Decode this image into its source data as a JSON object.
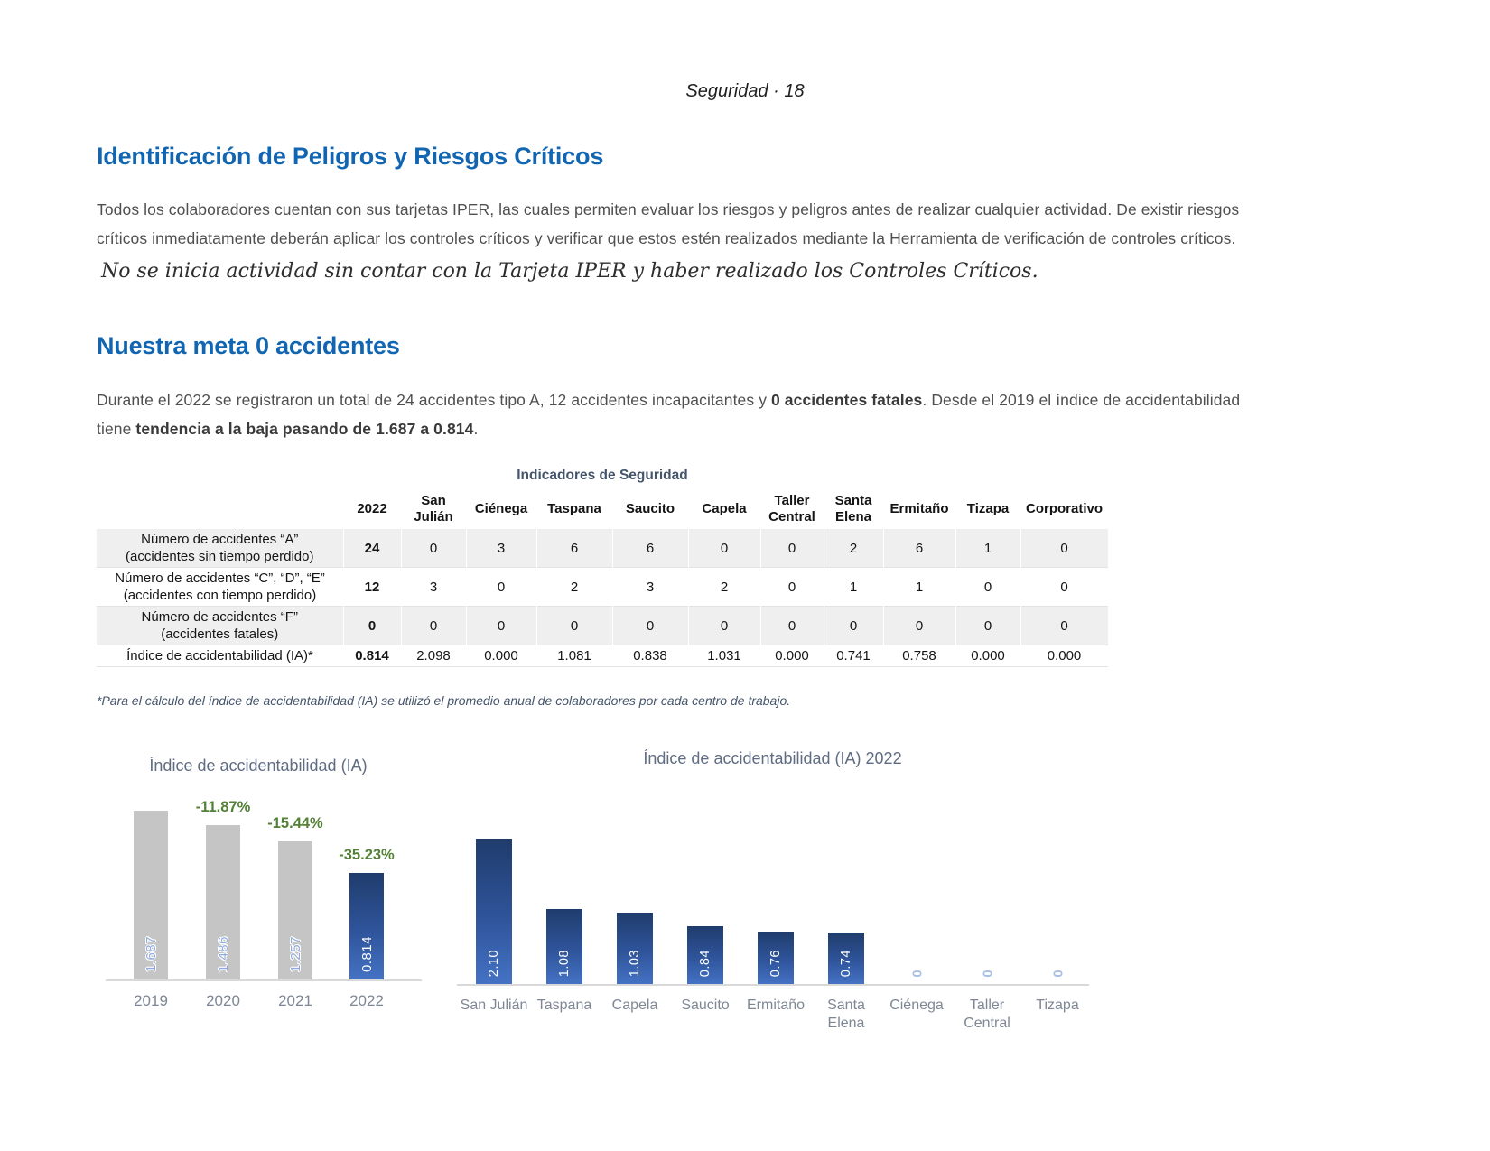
{
  "header": {
    "text": "Seguridad · 18"
  },
  "section_identificacion": {
    "title": "Identificación de Peligros y Riesgos Críticos",
    "body_line1": "Todos los colaboradores cuentan con sus tarjetas IPER, las cuales permiten evaluar los riesgos y peligros antes de realizar cualquier actividad.  De existir riesgos",
    "body_line2": "críticos inmediatamente deberán aplicar los controles críticos y verificar que estos estén realizados mediante la Herramienta de verificación de controles críticos.",
    "quote": "No se inicia actividad sin contar con la Tarjeta IPER y haber realizado los Controles Críticos."
  },
  "section_meta": {
    "title": "Nuestra meta 0 accidentes",
    "p_line1_normal1": "Durante el 2022 se registraron un total de 24 accidentes tipo A, 12 accidentes incapacitantes y ",
    "p_line1_bold": "0 accidentes fatales",
    "p_line1_normal2": ". Desde el 2019 el índice de accidentabilidad",
    "p_line2_normal1": "tiene ",
    "p_line2_bold": "tendencia a la baja pasando de 1.687 a 0.814",
    "p_line2_normal2": "."
  },
  "table": {
    "title": "Indicadores de Seguridad",
    "columns": [
      "2022",
      "San Julián",
      "Ciénega",
      "Taspana",
      "Saucito",
      "Capela",
      "Taller Central",
      "Santa Elena",
      "Ermitaño",
      "Tizapa",
      "Corporativo"
    ],
    "rows": [
      {
        "label_1": "Número de accidentes “A”",
        "label_2": "(accidentes sin tiempo perdido)",
        "values": [
          "24",
          "0",
          "3",
          "6",
          "6",
          "0",
          "0",
          "2",
          "6",
          "1",
          "0"
        ]
      },
      {
        "label_1": "Número de accidentes “C”, “D”, “E”",
        "label_2": "(accidentes con tiempo perdido)",
        "values": [
          "12",
          "3",
          "0",
          "2",
          "3",
          "2",
          "0",
          "1",
          "1",
          "0",
          "0"
        ]
      },
      {
        "label_1": "Número de accidentes “F”",
        "label_2": "(accidentes fatales)",
        "values": [
          "0",
          "0",
          "0",
          "0",
          "0",
          "0",
          "0",
          "0",
          "0",
          "0",
          "0"
        ]
      },
      {
        "label_1": "Índice de accidentabilidad (IA)*",
        "label_2": "",
        "values": [
          "0.814",
          "2.098",
          "0.000",
          "1.081",
          "0.838",
          "1.031",
          "0.000",
          "0.741",
          "0.758",
          "0.000",
          "0.000"
        ]
      }
    ],
    "footnote": "*Para el cálculo del índice de accidentabilidad (IA) se utilizó el promedio anual de colaboradores por cada centro de trabajo."
  },
  "chart_data": [
    {
      "type": "bar",
      "title": "Índice de accidentabilidad (IA)",
      "categories": [
        "2019",
        "2020",
        "2021",
        "2022"
      ],
      "values": [
        1.687,
        1.486,
        1.257,
        0.814
      ],
      "bar_labels": [
        "1.687",
        "1.486",
        "1.257",
        "0.814"
      ],
      "annotations": [
        "",
        "-11.87%",
        "-15.44%",
        "-35.23%"
      ],
      "highlight_index": 3,
      "xlabel": "",
      "ylabel": "",
      "grid": false,
      "legend": "none",
      "bar_color_default": "#C5C5C5",
      "bar_color_highlight": "#2E5BA5",
      "annotation_color": "#538135",
      "value_label_color": "#8FAADC"
    },
    {
      "type": "bar",
      "title": "Índice de accidentabilidad (IA) 2022",
      "categories": [
        "San Julián",
        "Taspana",
        "Capela",
        "Saucito",
        "Ermitaño",
        "Santa Elena",
        "Ciénega",
        "Taller Central",
        "Tizapa"
      ],
      "values": [
        2.1,
        1.08,
        1.03,
        0.84,
        0.76,
        0.74,
        0,
        0,
        0
      ],
      "bar_labels": [
        "2.10",
        "1.08",
        "1.03",
        "0.84",
        "0.76",
        "0.74",
        "0",
        "0",
        "0"
      ],
      "ylim": [
        0,
        2.1
      ],
      "xlabel": "",
      "ylabel": "",
      "grid": false,
      "legend": "none",
      "bar_color_top": "#1F3C6C",
      "bar_color_bottom": "#4472C4",
      "value_label_color": "#FFFFFF",
      "zero_marker_color": "#A9C0E6"
    }
  ],
  "colors": {
    "heading_blue": "#1266B1",
    "table_title_navy": "#44546A",
    "body_gray": "#4F4F4F",
    "chart_title_gray": "#5F6C82",
    "category_gray": "#7E8795",
    "green_change": "#538135",
    "bar_gray": "#C5C5C5",
    "bar_blue_gradient_top": "#1F3C6C",
    "bar_blue_gradient_bottom": "#4472C4",
    "axis_gray": "#D9D9D9",
    "row_shade": "#EFEFEF"
  }
}
